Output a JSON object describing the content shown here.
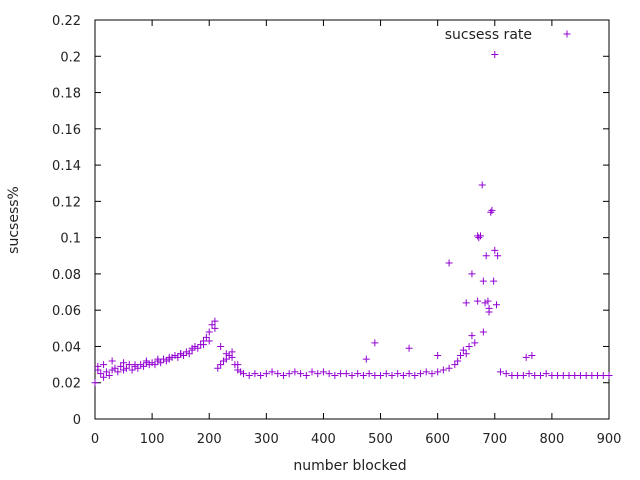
{
  "chart_data": {
    "type": "scatter",
    "title": "",
    "xlabel": "number blocked",
    "ylabel": "sucsess%",
    "xlim": [
      0,
      900
    ],
    "ylim": [
      0,
      0.22
    ],
    "xticks": [
      "0",
      "100",
      "200",
      "300",
      "400",
      "500",
      "600",
      "700",
      "800",
      "900"
    ],
    "yticks": [
      "0",
      "0.02",
      "0.04",
      "0.06",
      "0.08",
      "0.1",
      "0.12",
      "0.14",
      "0.16",
      "0.18",
      "0.2",
      "0.22"
    ],
    "grid": false,
    "legend_position": "top-right",
    "marker": "plus",
    "series": [
      {
        "name": "sucsess rate",
        "color": "#9400d3",
        "x": [
          0,
          5,
          10,
          15,
          20,
          25,
          30,
          35,
          40,
          45,
          50,
          55,
          60,
          65,
          70,
          75,
          80,
          85,
          90,
          95,
          100,
          105,
          110,
          115,
          120,
          125,
          130,
          135,
          140,
          145,
          150,
          155,
          160,
          165,
          170,
          175,
          180,
          185,
          190,
          195,
          200,
          205,
          210,
          215,
          220,
          225,
          230,
          235,
          240,
          245,
          250,
          255,
          260,
          270,
          280,
          290,
          300,
          310,
          320,
          330,
          340,
          350,
          360,
          370,
          380,
          390,
          400,
          410,
          420,
          430,
          440,
          450,
          460,
          470,
          480,
          490,
          500,
          510,
          520,
          530,
          540,
          550,
          560,
          570,
          580,
          590,
          600,
          610,
          620,
          630,
          635,
          640,
          645,
          650,
          655,
          660,
          665,
          670,
          672,
          675,
          678,
          680,
          683,
          685,
          688,
          690,
          693,
          695,
          698,
          700,
          703,
          705,
          710,
          720,
          730,
          740,
          750,
          760,
          770,
          780,
          790,
          800,
          810,
          820,
          830,
          840,
          850,
          860,
          870,
          880,
          890,
          900,
          5,
          15,
          30,
          50,
          70,
          90,
          110,
          130,
          150,
          170,
          190,
          200,
          210,
          220,
          230,
          240,
          250,
          475,
          490,
          550,
          600,
          620,
          650,
          660,
          670,
          680,
          690,
          700,
          755,
          765
        ],
        "y": [
          0.02,
          0.027,
          0.025,
          0.023,
          0.026,
          0.024,
          0.027,
          0.028,
          0.026,
          0.029,
          0.027,
          0.028,
          0.03,
          0.027,
          0.029,
          0.028,
          0.03,
          0.029,
          0.031,
          0.03,
          0.031,
          0.03,
          0.032,
          0.031,
          0.033,
          0.032,
          0.033,
          0.034,
          0.035,
          0.034,
          0.036,
          0.035,
          0.037,
          0.036,
          0.038,
          0.04,
          0.039,
          0.041,
          0.043,
          0.045,
          0.048,
          0.052,
          0.054,
          0.028,
          0.03,
          0.032,
          0.033,
          0.035,
          0.034,
          0.03,
          0.027,
          0.026,
          0.025,
          0.024,
          0.025,
          0.024,
          0.025,
          0.026,
          0.025,
          0.024,
          0.025,
          0.026,
          0.025,
          0.024,
          0.026,
          0.025,
          0.026,
          0.025,
          0.024,
          0.025,
          0.025,
          0.024,
          0.025,
          0.024,
          0.025,
          0.024,
          0.024,
          0.025,
          0.024,
          0.025,
          0.024,
          0.025,
          0.024,
          0.025,
          0.026,
          0.025,
          0.026,
          0.027,
          0.028,
          0.03,
          0.032,
          0.035,
          0.038,
          0.036,
          0.04,
          0.046,
          0.042,
          0.065,
          0.1,
          0.101,
          0.129,
          0.076,
          0.064,
          0.09,
          0.065,
          0.061,
          0.114,
          0.115,
          0.076,
          0.093,
          0.063,
          0.09,
          0.026,
          0.025,
          0.024,
          0.024,
          0.024,
          0.025,
          0.024,
          0.024,
          0.025,
          0.024,
          0.024,
          0.024,
          0.024,
          0.024,
          0.024,
          0.024,
          0.024,
          0.024,
          0.024,
          0.024,
          0.029,
          0.03,
          0.032,
          0.031,
          0.03,
          0.032,
          0.033,
          0.034,
          0.036,
          0.039,
          0.041,
          0.043,
          0.05,
          0.04,
          0.036,
          0.037,
          0.03,
          0.033,
          0.042,
          0.039,
          0.035,
          0.086,
          0.064,
          0.08,
          0.101,
          0.048,
          0.059,
          0.201,
          0.034,
          0.035
        ]
      }
    ]
  }
}
